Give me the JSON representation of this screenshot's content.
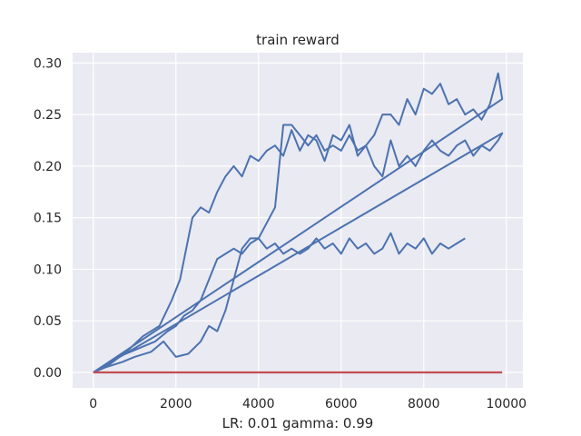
{
  "chart_data": {
    "type": "line",
    "title": "train reward",
    "xlabel": "LR: 0.01 gamma: 0.99",
    "ylabel": "",
    "xlim": [
      -500,
      10400
    ],
    "ylim": [
      -0.015,
      0.31
    ],
    "xticks": [
      0,
      2000,
      4000,
      6000,
      8000,
      10000
    ],
    "xtick_labels": [
      "0",
      "2000",
      "4000",
      "6000",
      "8000",
      "10000"
    ],
    "yticks": [
      0.0,
      0.05,
      0.1,
      0.15,
      0.2,
      0.25,
      0.3
    ],
    "ytick_labels": [
      "0.00",
      "0.05",
      "0.10",
      "0.15",
      "0.20",
      "0.25",
      "0.30"
    ],
    "grid": true,
    "legend": "none",
    "colors": {
      "background": "#eaeaf2",
      "grid": "#ffffff",
      "series": "#4c72b0",
      "baseline": "#c44e52",
      "text": "#262626"
    },
    "series": [
      {
        "color": "#4c72b0",
        "x": [
          0,
          400,
          800,
          1200,
          1600,
          1900,
          2100,
          2300,
          2400,
          2600,
          2800,
          3000,
          3200,
          3400,
          3600,
          3800,
          4000,
          4200,
          4400,
          4600,
          4800,
          5000,
          5200,
          5400,
          5600,
          5800,
          6000,
          6200,
          6400,
          6600,
          6800,
          7000,
          7200,
          7400,
          7600,
          7800,
          8000,
          8200,
          8400,
          8600,
          8800,
          9000,
          9200,
          9400,
          9600,
          9800,
          9900,
          0
        ],
        "y": [
          0.0,
          0.008,
          0.02,
          0.035,
          0.045,
          0.07,
          0.09,
          0.13,
          0.15,
          0.16,
          0.155,
          0.175,
          0.19,
          0.2,
          0.19,
          0.21,
          0.205,
          0.215,
          0.22,
          0.21,
          0.235,
          0.215,
          0.23,
          0.225,
          0.205,
          0.23,
          0.225,
          0.24,
          0.21,
          0.22,
          0.23,
          0.25,
          0.25,
          0.24,
          0.265,
          0.25,
          0.275,
          0.27,
          0.28,
          0.26,
          0.265,
          0.25,
          0.255,
          0.245,
          0.26,
          0.29,
          0.265,
          0.0
        ]
      },
      {
        "color": "#4c72b0",
        "x": [
          0,
          300,
          700,
          1000,
          1400,
          1700,
          2000,
          2300,
          2600,
          2800,
          3000,
          3200,
          3400,
          3600,
          3800,
          4000,
          4200,
          4400,
          4600,
          4800,
          5000,
          5200,
          5400,
          5600,
          5800,
          6000,
          6200,
          6400,
          6600,
          6800,
          7000,
          7200,
          7400,
          7600,
          7800,
          8000,
          8200,
          8400,
          8600,
          8800,
          9000,
          9200,
          9400,
          9600,
          9800,
          9900,
          0
        ],
        "y": [
          0.0,
          0.005,
          0.01,
          0.015,
          0.02,
          0.03,
          0.015,
          0.018,
          0.03,
          0.045,
          0.04,
          0.06,
          0.09,
          0.12,
          0.13,
          0.13,
          0.145,
          0.16,
          0.24,
          0.24,
          0.23,
          0.22,
          0.23,
          0.215,
          0.22,
          0.215,
          0.23,
          0.215,
          0.22,
          0.2,
          0.19,
          0.225,
          0.2,
          0.21,
          0.2,
          0.215,
          0.225,
          0.215,
          0.21,
          0.22,
          0.225,
          0.21,
          0.22,
          0.215,
          0.225,
          0.232,
          0.0
        ]
      },
      {
        "color": "#4c72b0",
        "x": [
          0,
          300,
          600,
          900,
          1200,
          1500,
          1800,
          2000,
          2200,
          2400,
          2600,
          2800,
          3000,
          3200,
          3400,
          3600,
          3800,
          4000,
          4200,
          4400,
          4600,
          4800,
          5000,
          5200,
          5400,
          5600,
          5800,
          6000,
          6200,
          6400,
          6600,
          6800,
          7000,
          7200,
          7400,
          7600,
          7800,
          8000,
          8200,
          8400,
          8600,
          8800,
          9000
        ],
        "y": [
          0.0,
          0.006,
          0.015,
          0.02,
          0.025,
          0.03,
          0.04,
          0.045,
          0.055,
          0.06,
          0.07,
          0.09,
          0.11,
          0.115,
          0.12,
          0.115,
          0.125,
          0.13,
          0.12,
          0.125,
          0.115,
          0.12,
          0.115,
          0.12,
          0.13,
          0.12,
          0.125,
          0.115,
          0.13,
          0.12,
          0.125,
          0.115,
          0.12,
          0.135,
          0.115,
          0.125,
          0.12,
          0.13,
          0.115,
          0.125,
          0.12,
          0.125,
          0.13
        ]
      },
      {
        "color": "#c44e52",
        "x": [
          0,
          9900
        ],
        "y": [
          0.0,
          0.0
        ]
      }
    ]
  }
}
